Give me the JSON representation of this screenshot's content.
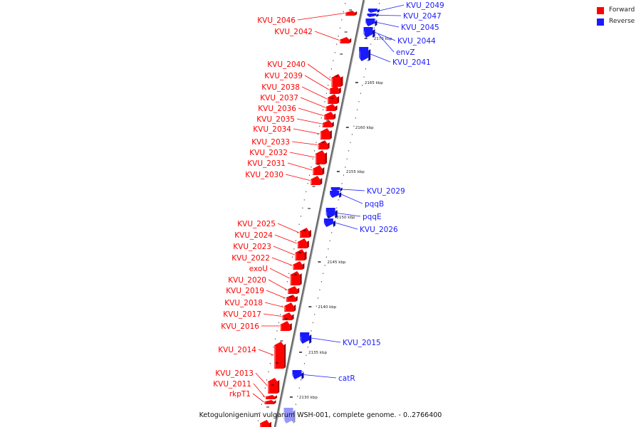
{
  "caption": "Ketogulonigenium vulgarum WSH-001, complete genome. - 0..2766400",
  "legend": {
    "forward_label": "Forward",
    "reverse_label": "Reverse",
    "forward_color": "#ff0000",
    "reverse_color": "#1a1aff"
  },
  "axis": {
    "unit": "kbp",
    "tick_labels": [
      "2170 kbp",
      "2165 kbp",
      "2160 kbp",
      "2155 kbp",
      "2150 kbp",
      "2145 kbp",
      "2140 kbp",
      "2135 kbp",
      "2130 kbp"
    ]
  },
  "genes": {
    "forward": [
      "KVU_2046",
      "KVU_2042",
      "KVU_2040",
      "KVU_2039",
      "KVU_2038",
      "KVU_2037",
      "KVU_2036",
      "KVU_2035",
      "KVU_2034",
      "KVU_2033",
      "KVU_2032",
      "KVU_2031",
      "KVU_2030",
      "KVU_2025",
      "KVU_2024",
      "KVU_2023",
      "KVU_2022",
      "exoU",
      "KVU_2020",
      "KVU_2019",
      "KVU_2018",
      "KVU_2017",
      "KVU_2016",
      "KVU_2014",
      "KVU_2013",
      "KVU_2011",
      "rkpT1"
    ],
    "reverse": [
      "KVU_2049",
      "KVU_2047",
      "KVU_2045",
      "KVU_2044",
      "envZ",
      "KVU_2041",
      "KVU_2029",
      "pqqB",
      "pqqE",
      "KVU_2026",
      "KVU_2015",
      "catR"
    ]
  }
}
